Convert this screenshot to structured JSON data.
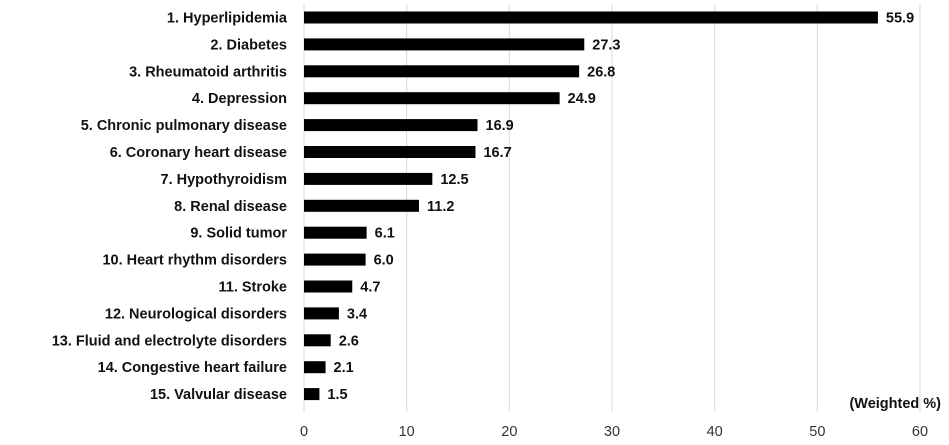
{
  "chart_data": {
    "type": "bar",
    "orientation": "horizontal",
    "categories": [
      "1. Hyperlipidemia",
      "2. Diabetes",
      "3. Rheumatoid arthritis",
      "4. Depression",
      "5. Chronic pulmonary disease",
      "6. Coronary heart disease",
      "7. Hypothyroidism",
      "8. Renal disease",
      "9. Solid tumor",
      "10. Heart rhythm disorders",
      "11. Stroke",
      "12. Neurological disorders",
      "13. Fluid and electrolyte disorders",
      "14. Congestive heart failure",
      "15. Valvular disease"
    ],
    "values": [
      55.9,
      27.3,
      26.8,
      24.9,
      16.9,
      16.7,
      12.5,
      11.2,
      6.1,
      6.0,
      4.7,
      3.4,
      2.6,
      2.1,
      1.5
    ],
    "value_labels": [
      "55.9",
      "27.3",
      "26.8",
      "24.9",
      "16.9",
      "16.7",
      "12.5",
      "11.2",
      "6.1",
      "6.0",
      "4.7",
      "3.4",
      "2.6",
      "2.1",
      "1.5"
    ],
    "xlabel": "(Weighted %)",
    "xlim": [
      0,
      60
    ],
    "xticks": [
      "0",
      "10",
      "20",
      "30",
      "40",
      "50",
      "60"
    ],
    "grid": true,
    "bar_color": "#000000",
    "grid_color": "#d9d9d9"
  }
}
